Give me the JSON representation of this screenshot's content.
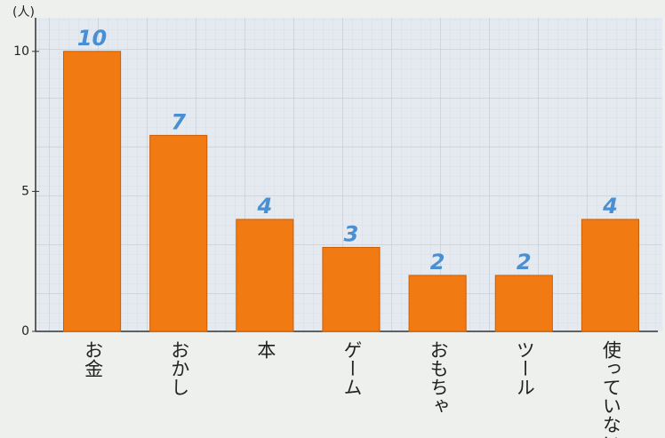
{
  "chart_data": {
    "type": "bar",
    "y_label": "(人)",
    "categories": [
      "お金",
      "おかし",
      "本",
      "ゲーム",
      "おもちゃ",
      "ツール",
      "使っていない"
    ],
    "values": [
      10,
      7,
      4,
      3,
      2,
      2,
      4
    ],
    "color": "#f27a12",
    "label_color": "#4a8fd2",
    "ylim": [
      0,
      11.2
    ],
    "yticks": [
      0,
      5,
      10
    ],
    "grid": false
  }
}
